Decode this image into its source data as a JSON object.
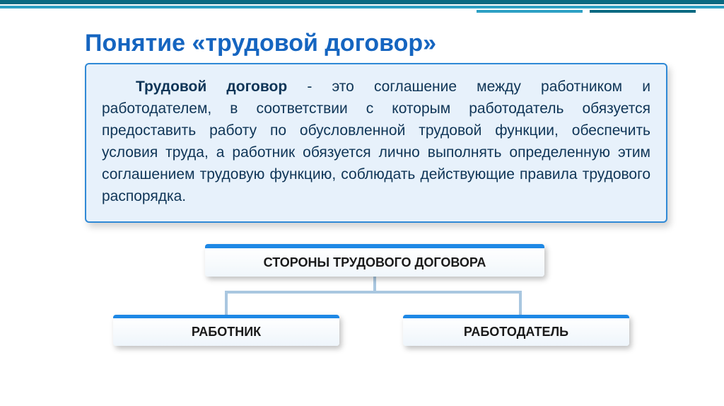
{
  "colors": {
    "topbar_dark": "#0a6a82",
    "topbar_light": "#2ea1c4",
    "title": "#1565c0",
    "defbox_bg": "#e7f1fb",
    "defbox_border": "#2f89d6",
    "defbox_text": "#0f3557",
    "hier_accent": "#1e88e5",
    "connector": "#a9c7e0"
  },
  "title": {
    "text": "Понятие «трудовой договор»",
    "fontsize": 34
  },
  "definition": {
    "lead": "Трудовой договор",
    "body": " - это соглашение между работником и работодателем, в соответствии с которым работодатель обязуется предоставить работу по обусловленной трудовой функции, обеспечить условия труда, а работник обязуется лично выполнять определенную этим соглашением трудовую функцию, соблюдать действующие правила трудового распорядка.",
    "fontsize": 21
  },
  "hierarchy": {
    "parent": "СТОРОНЫ ТРУДОВОГО ДОГОВОРА",
    "left": "РАБОТНИК",
    "right": "РАБОТОДАТЕЛЬ",
    "fontsize": 18
  }
}
